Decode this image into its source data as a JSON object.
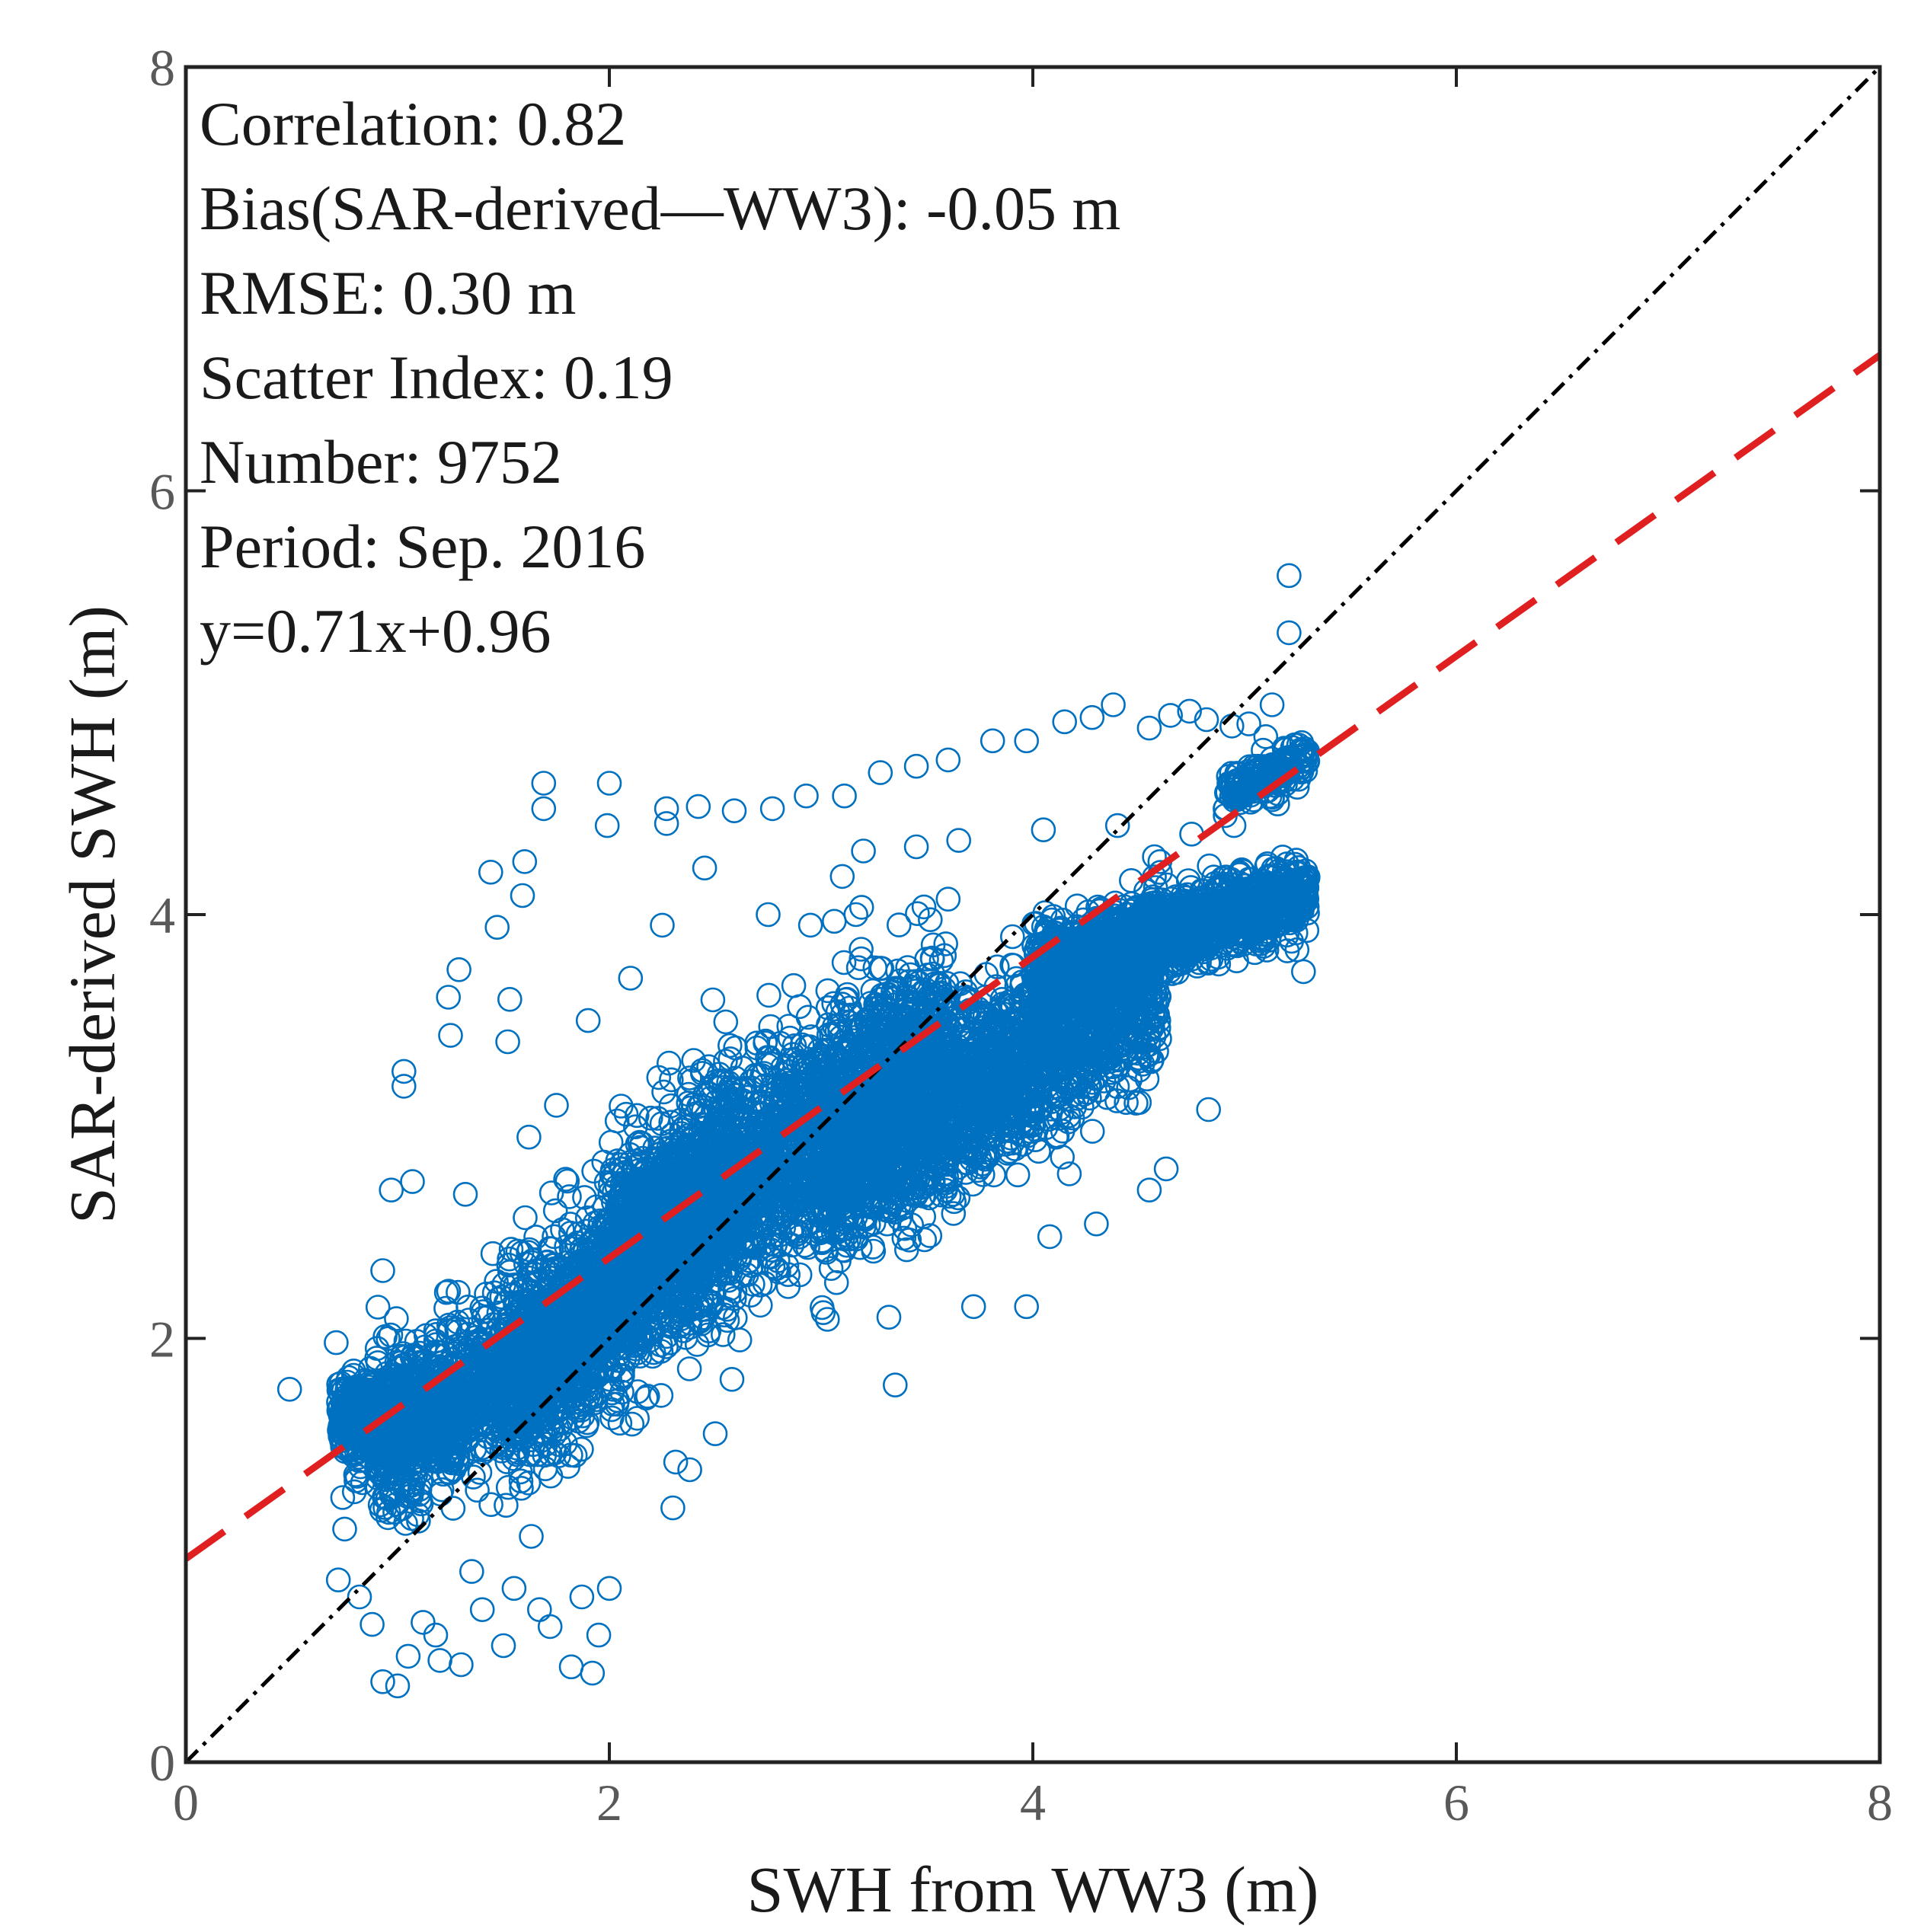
{
  "chart_data": {
    "type": "scatter",
    "xlabel": "SWH from WW3 (m)",
    "ylabel": "SAR-derived SWH (m)",
    "xlim": [
      0,
      8
    ],
    "ylim": [
      0,
      8
    ],
    "xticks": [
      "0",
      "2",
      "4",
      "6",
      "8"
    ],
    "yticks": [
      "0",
      "2",
      "4",
      "6",
      "8"
    ],
    "grid": false,
    "colors": {
      "points": "#0070C0",
      "fit_line": "#E02020",
      "identity_line": "#000000",
      "axes": "#222222"
    },
    "annotations": [
      "Correlation: 0.82",
      "Bias(SAR-derived—WW3): -0.05 m",
      "RMSE: 0.30 m",
      "Scatter Index: 0.19",
      "Number: 9752",
      "Period: Sep. 2016",
      "y=0.71x+0.96"
    ],
    "fit_line": {
      "slope": 0.71,
      "intercept": 0.96,
      "style": "dashed"
    },
    "identity_line": {
      "slope": 1,
      "intercept": 0,
      "style": "dash-dot"
    },
    "series": [
      {
        "marker": "open-circle",
        "count": 9752,
        "outliers": [
          [
            0.49,
            1.76
          ],
          [
            0.71,
            1.98
          ],
          [
            0.93,
            2.32
          ],
          [
            0.97,
            2.7
          ],
          [
            1.03,
            3.26
          ],
          [
            1.03,
            3.19
          ],
          [
            1.07,
            2.74
          ],
          [
            1.24,
            3.61
          ],
          [
            1.29,
            3.74
          ],
          [
            1.25,
            3.43
          ],
          [
            1.32,
            2.68
          ],
          [
            1.47,
            3.94
          ],
          [
            1.44,
            4.2
          ],
          [
            1.59,
            4.09
          ],
          [
            1.6,
            4.25
          ],
          [
            1.69,
            4.62
          ],
          [
            1.69,
            4.5
          ],
          [
            1.53,
            3.6
          ],
          [
            1.52,
            3.4
          ],
          [
            2.0,
            4.62
          ],
          [
            1.99,
            4.42
          ],
          [
            2.27,
            4.5
          ],
          [
            2.27,
            4.43
          ],
          [
            2.42,
            4.51
          ],
          [
            2.59,
            4.49
          ],
          [
            2.77,
            4.5
          ],
          [
            2.93,
            4.56
          ],
          [
            3.11,
            4.56
          ],
          [
            3.28,
            4.67
          ],
          [
            3.45,
            4.7
          ],
          [
            3.6,
            4.73
          ],
          [
            3.81,
            4.82
          ],
          [
            3.97,
            4.82
          ],
          [
            4.15,
            4.91
          ],
          [
            4.28,
            4.93
          ],
          [
            4.38,
            4.99
          ],
          [
            4.55,
            4.88
          ],
          [
            4.65,
            4.94
          ],
          [
            4.74,
            4.96
          ],
          [
            4.82,
            4.92
          ],
          [
            4.94,
            4.89
          ],
          [
            5.02,
            4.9
          ],
          [
            5.1,
            4.84
          ],
          [
            5.13,
            4.99
          ],
          [
            5.21,
            5.6
          ],
          [
            5.21,
            5.33
          ],
          [
            0.93,
            0.38
          ],
          [
            1.0,
            0.36
          ],
          [
            1.05,
            0.5
          ],
          [
            1.2,
            0.48
          ],
          [
            1.3,
            0.46
          ],
          [
            1.5,
            0.55
          ],
          [
            1.82,
            0.45
          ],
          [
            1.92,
            0.42
          ],
          [
            1.95,
            0.6
          ],
          [
            2.3,
            1.2
          ],
          [
            2.38,
            1.38
          ],
          [
            3.35,
            1.78
          ],
          [
            3.32,
            2.1
          ],
          [
            3.72,
            2.15
          ],
          [
            3.97,
            2.15
          ],
          [
            4.08,
            2.48
          ],
          [
            4.3,
            2.54
          ],
          [
            4.55,
            2.7
          ],
          [
            4.63,
            2.8
          ],
          [
            4.83,
            3.08
          ],
          [
            3.03,
            2.09
          ],
          [
            2.9,
            2.3
          ],
          [
            0.72,
            0.86
          ],
          [
            0.75,
            1.1
          ],
          [
            0.82,
            0.78
          ],
          [
            0.88,
            0.65
          ],
          [
            1.12,
            0.66
          ],
          [
            1.18,
            0.6
          ],
          [
            1.4,
            0.72
          ],
          [
            1.67,
            0.72
          ],
          [
            1.72,
            0.64
          ],
          [
            1.87,
            0.78
          ],
          [
            2.0,
            0.82
          ],
          [
            1.35,
            0.9
          ],
          [
            1.55,
            0.82
          ],
          [
            1.7,
            1.5
          ],
          [
            2.05,
            1.6
          ],
          [
            2.5,
            1.55
          ],
          [
            1.45,
            2.4
          ],
          [
            1.62,
            2.95
          ],
          [
            1.75,
            3.1
          ],
          [
            1.9,
            3.5
          ],
          [
            2.1,
            3.7
          ],
          [
            2.25,
            3.95
          ],
          [
            2.45,
            4.22
          ],
          [
            2.75,
            4.0
          ],
          [
            2.95,
            3.95
          ],
          [
            3.1,
            4.18
          ],
          [
            3.2,
            4.3
          ],
          [
            3.45,
            4.32
          ],
          [
            3.65,
            4.35
          ],
          [
            4.05,
            4.4
          ],
          [
            4.4,
            4.42
          ],
          [
            4.6,
            4.25
          ],
          [
            4.75,
            4.38
          ],
          [
            4.95,
            4.42
          ]
        ],
        "clusters": [
          {
            "x_range": [
              0.72,
              1.3
            ],
            "center_y": 1.62,
            "spread_y": 0.24,
            "points": 600
          },
          {
            "x_range": [
              0.9,
              1.95
            ],
            "center_y_at_x_min": 1.5,
            "center_y_at_x_max": 2.1,
            "spread_y": 0.34,
            "points": 1100
          },
          {
            "x_range": [
              1.5,
              2.6
            ],
            "center_y_at_x_min": 1.75,
            "center_y_at_x_max": 2.8,
            "spread_y": 0.45,
            "points": 1400
          },
          {
            "x_range": [
              2.0,
              3.6
            ],
            "center_y_at_x_min": 2.3,
            "center_y_at_x_max": 3.45,
            "spread_y": 0.48,
            "points": 2200
          },
          {
            "x_range": [
              3.0,
              4.6
            ],
            "center_y_at_x_min": 2.75,
            "center_y_at_x_max": 3.7,
            "spread_y": 0.38,
            "points": 2000
          },
          {
            "x_range": [
              4.0,
              5.3
            ],
            "center_y_at_x_min": 3.75,
            "center_y_at_x_max": 4.1,
            "spread_y": 0.16,
            "points": 1400
          },
          {
            "x_range": [
              4.9,
              5.3
            ],
            "center_y_at_x_min": 4.55,
            "center_y_at_x_max": 4.75,
            "spread_y": 0.09,
            "points": 180
          }
        ]
      }
    ]
  }
}
